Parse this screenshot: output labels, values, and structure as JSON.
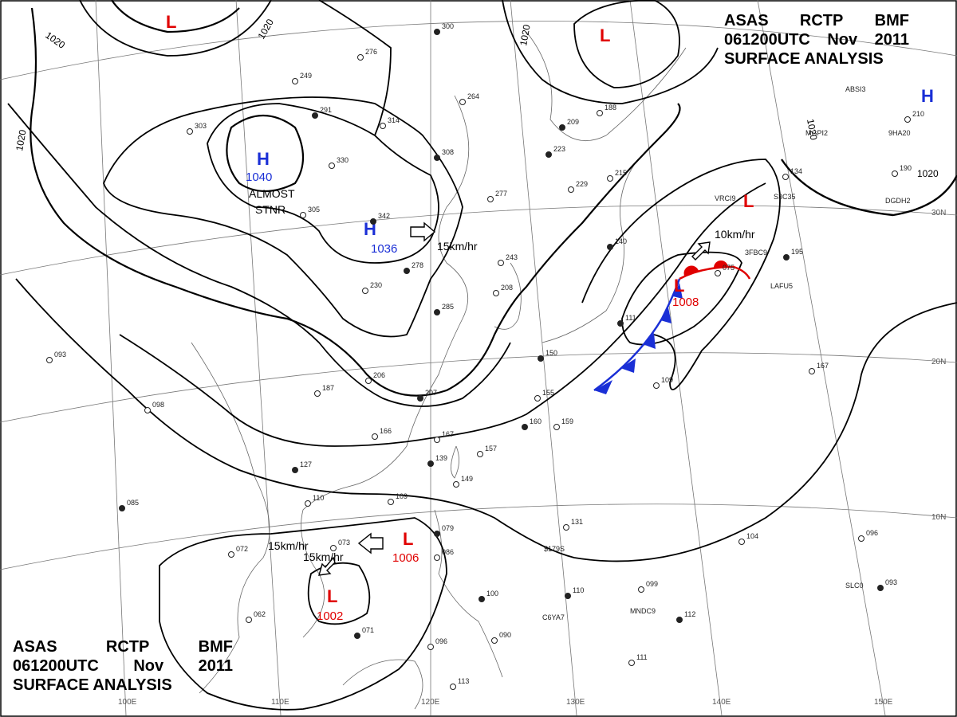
{
  "title": {
    "line1": [
      "ASAS",
      "RCTP",
      "BMF"
    ],
    "line2": [
      "061200UTC",
      "Nov",
      "2011"
    ],
    "line3": "SURFACE ANALYSIS"
  },
  "pressure_centers": [
    {
      "type": "H",
      "value": "1040",
      "color": "#1a2fd6"
    },
    {
      "type": "H",
      "value": "1036",
      "color": "#1a2fd6"
    },
    {
      "type": "H",
      "value": "",
      "color": "#1a2fd6"
    },
    {
      "type": "L",
      "value": "",
      "color": "#e00000"
    },
    {
      "type": "L",
      "value": "",
      "color": "#e00000"
    },
    {
      "type": "L",
      "value": "",
      "color": "#e00000"
    },
    {
      "type": "L",
      "value": "1008",
      "color": "#e00000"
    },
    {
      "type": "L",
      "value": "1006",
      "color": "#e00000"
    },
    {
      "type": "L",
      "value": "1002",
      "color": "#e00000"
    }
  ],
  "annotations": {
    "almost": "ALMOST",
    "stnr": "STNR",
    "motion_1": "15km/hr",
    "motion_2": "10km/hr",
    "motion_3": "15km/hr",
    "motion_4": "15km/hr"
  },
  "isobar_labels": [
    "1020",
    "1020",
    "1020",
    "1020",
    "1020",
    "1020"
  ],
  "longitude_labels": [
    "100E",
    "110E",
    "120E",
    "130E",
    "140E",
    "150E"
  ],
  "latitude_labels": [
    "30N",
    "20N",
    "10N"
  ],
  "stations": [
    {
      "id": "300"
    },
    {
      "id": "276"
    },
    {
      "id": "249"
    },
    {
      "id": "291"
    },
    {
      "id": "314"
    },
    {
      "id": "264"
    },
    {
      "id": "308"
    },
    {
      "id": "330"
    },
    {
      "id": "303"
    },
    {
      "id": "342"
    },
    {
      "id": "305"
    },
    {
      "id": "277"
    },
    {
      "id": "223"
    },
    {
      "id": "229"
    },
    {
      "id": "215"
    },
    {
      "id": "209"
    },
    {
      "id": "188"
    },
    {
      "id": "230"
    },
    {
      "id": "278"
    },
    {
      "id": "243"
    },
    {
      "id": "208"
    },
    {
      "id": "285"
    },
    {
      "id": "206"
    },
    {
      "id": "187"
    },
    {
      "id": "207"
    },
    {
      "id": "166"
    },
    {
      "id": "167"
    },
    {
      "id": "139"
    },
    {
      "id": "157"
    },
    {
      "id": "149"
    },
    {
      "id": "160"
    },
    {
      "id": "159"
    },
    {
      "id": "155"
    },
    {
      "id": "150"
    },
    {
      "id": "109"
    },
    {
      "id": "110"
    },
    {
      "id": "127"
    },
    {
      "id": "098"
    },
    {
      "id": "093"
    },
    {
      "id": "085"
    },
    {
      "id": "072"
    },
    {
      "id": "073"
    },
    {
      "id": "079"
    },
    {
      "id": "086"
    },
    {
      "id": "062"
    },
    {
      "id": "071"
    },
    {
      "id": "096"
    },
    {
      "id": "090"
    },
    {
      "id": "100"
    },
    {
      "id": "113"
    },
    {
      "id": "131"
    },
    {
      "id": "110"
    },
    {
      "id": "099"
    },
    {
      "id": "104"
    },
    {
      "id": "112"
    },
    {
      "id": "111"
    },
    {
      "id": "096"
    },
    {
      "id": "093"
    },
    {
      "id": "167"
    },
    {
      "id": "109"
    },
    {
      "id": "195"
    },
    {
      "id": "190"
    },
    {
      "id": "075"
    },
    {
      "id": "140"
    },
    {
      "id": "134"
    },
    {
      "id": "210"
    },
    {
      "id": "111"
    }
  ],
  "ship_callsigns": [
    "VRCI9",
    "3FBC9",
    "LAFU5",
    "S3C35",
    "9HA20",
    "MGPI2",
    "DGDH2",
    "ABSI3",
    "C6YA7",
    "MNDC9",
    "SLC0",
    "$179S"
  ],
  "colors": {
    "high": "#1a2fd6",
    "low": "#e00000",
    "cold_front": "#1a2fd6",
    "warm_front": "#e00000",
    "isobar": "#000000",
    "grid": "#777777",
    "coast": "#555555"
  }
}
